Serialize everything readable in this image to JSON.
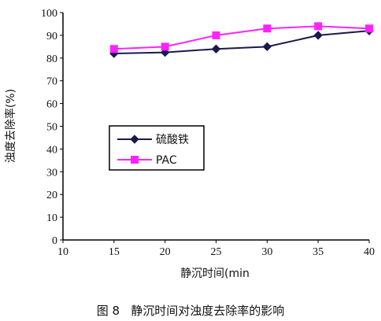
{
  "chart_data": {
    "type": "line",
    "x": [
      15,
      20,
      25,
      30,
      35,
      40
    ],
    "xlim": [
      10,
      40
    ],
    "ylim": [
      0,
      100
    ],
    "x_ticks": [
      "10",
      "15",
      "20",
      "25",
      "30",
      "35",
      "40"
    ],
    "y_ticks": [
      "0",
      "10",
      "20",
      "30",
      "40",
      "50",
      "60",
      "70",
      "80",
      "90",
      "100"
    ],
    "xlabel": "静沉时间(min",
    "ylabel": "浊度去除率(%)",
    "grid": false,
    "legend_position": "center-left",
    "series": [
      {
        "name": "硫酸铁",
        "values": [
          82,
          82.5,
          84,
          85,
          90,
          92
        ],
        "color": "#1a1a4a",
        "marker": "diamond"
      },
      {
        "name": "PAC",
        "values": [
          84,
          85,
          90,
          93,
          94,
          93
        ],
        "color": "#ff22ff",
        "marker": "square"
      }
    ]
  },
  "caption": "图 8   静沉时间对浊度去除率的影响"
}
